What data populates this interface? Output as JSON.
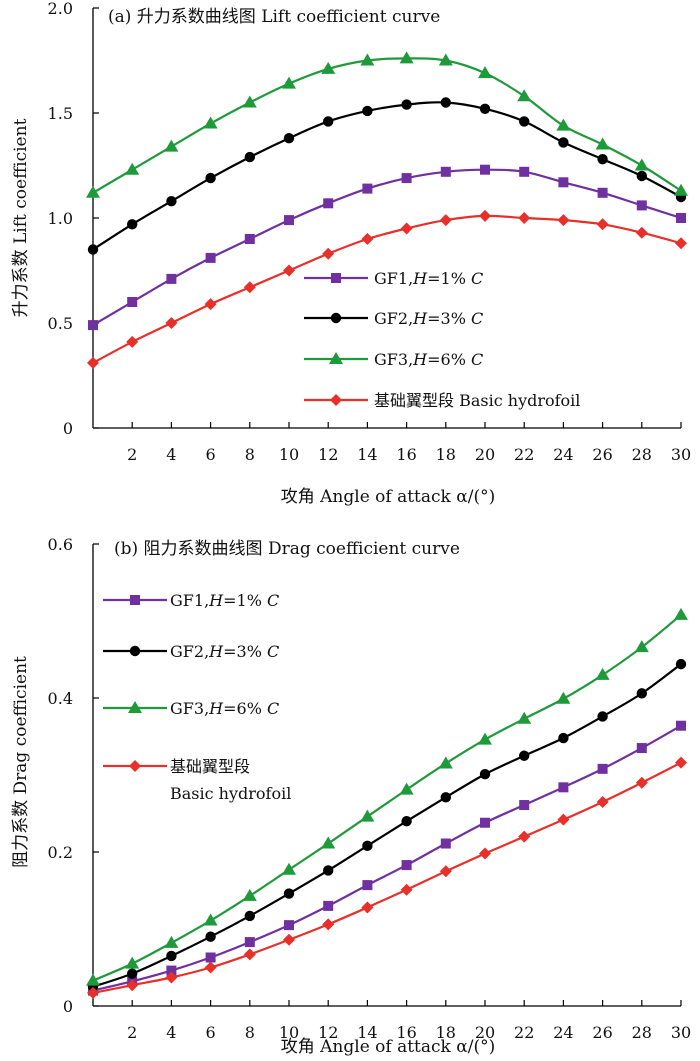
{
  "chart_data": [
    {
      "type": "line",
      "title": "(a) 升力系数曲线图 Lift coefficient curve",
      "xlabel": "攻角 Angle of attack α/(°)",
      "ylabel": "升力系数 Lift coefficient",
      "xlim": [
        0,
        30
      ],
      "ylim": [
        0,
        2.0
      ],
      "x_ticks": [
        "2",
        "4",
        "6",
        "8",
        "10",
        "12",
        "14",
        "16",
        "18",
        "20",
        "22",
        "24",
        "26",
        "28",
        "30"
      ],
      "y_ticks": [
        "0",
        "0.5",
        "1.0",
        "1.5",
        "2.0"
      ],
      "legend_position": "bottom-right",
      "legend_lines": [
        [
          "GF1,",
          "H",
          "=1% ",
          "C"
        ],
        [
          "GF2,",
          "H",
          "=3% ",
          "C"
        ],
        [
          "GF3,",
          "H",
          "=6% ",
          "C"
        ],
        [
          "基础翼型段 Basic hydrofoil"
        ]
      ],
      "x": [
        0,
        2,
        4,
        6,
        8,
        10,
        12,
        14,
        16,
        18,
        20,
        22,
        24,
        26,
        28,
        30
      ],
      "series": [
        {
          "name": "GF1,H=1% C",
          "color": "#7030a0",
          "marker": "square",
          "values": [
            0.49,
            0.6,
            0.71,
            0.81,
            0.9,
            0.99,
            1.07,
            1.14,
            1.19,
            1.22,
            1.23,
            1.22,
            1.17,
            1.12,
            1.06,
            1.0
          ]
        },
        {
          "name": "GF2,H=3% C",
          "color": "#000000",
          "marker": "circle",
          "values": [
            0.85,
            0.97,
            1.08,
            1.19,
            1.29,
            1.38,
            1.46,
            1.51,
            1.54,
            1.55,
            1.52,
            1.46,
            1.36,
            1.28,
            1.2,
            1.1
          ]
        },
        {
          "name": "GF3,H=6% C",
          "color": "#1f9a3a",
          "marker": "triangle",
          "values": [
            1.12,
            1.23,
            1.34,
            1.45,
            1.55,
            1.64,
            1.71,
            1.75,
            1.76,
            1.75,
            1.69,
            1.58,
            1.44,
            1.35,
            1.25,
            1.13
          ]
        },
        {
          "name": "基础翼型段 Basic hydrofoil",
          "color": "#e8302a",
          "marker": "diamond",
          "values": [
            0.31,
            0.41,
            0.5,
            0.59,
            0.67,
            0.75,
            0.83,
            0.9,
            0.95,
            0.99,
            1.01,
            1.0,
            0.99,
            0.97,
            0.93,
            0.88
          ]
        }
      ]
    },
    {
      "type": "line",
      "title": "(b) 阻力系数曲线图 Drag coefficient curve",
      "xlabel": "攻角 Angle of attack α/(°)",
      "ylabel": "阻力系数 Drag coefficient",
      "xlim": [
        0,
        30
      ],
      "ylim": [
        0,
        0.6
      ],
      "x_ticks": [
        "2",
        "4",
        "6",
        "8",
        "10",
        "12",
        "14",
        "16",
        "18",
        "20",
        "22",
        "24",
        "26",
        "28",
        "30"
      ],
      "y_ticks": [
        "0",
        "0.2",
        "0.4",
        "0.6"
      ],
      "legend_position": "top-left",
      "legend_lines": [
        [
          "GF1,",
          "H",
          "=1% ",
          "C"
        ],
        [
          "GF2,",
          "H",
          "=3% ",
          "C"
        ],
        [
          "GF3,",
          "H",
          "=6% ",
          "C"
        ],
        [
          "基础翼型段"
        ],
        [
          "Basic hydrofoil"
        ]
      ],
      "x": [
        0,
        2,
        4,
        6,
        8,
        10,
        12,
        14,
        16,
        18,
        20,
        22,
        24,
        26,
        28,
        30
      ],
      "series": [
        {
          "name": "GF1,H=1% C",
          "color": "#7030a0",
          "marker": "square",
          "values": [
            0.02,
            0.032,
            0.046,
            0.063,
            0.083,
            0.105,
            0.13,
            0.157,
            0.183,
            0.211,
            0.238,
            0.261,
            0.284,
            0.308,
            0.335,
            0.364
          ]
        },
        {
          "name": "GF2,H=3% C",
          "color": "#000000",
          "marker": "circle",
          "values": [
            0.025,
            0.042,
            0.065,
            0.09,
            0.117,
            0.146,
            0.176,
            0.208,
            0.24,
            0.271,
            0.301,
            0.325,
            0.348,
            0.376,
            0.406,
            0.444
          ]
        },
        {
          "name": "GF3,H=6% C",
          "color": "#1f9a3a",
          "marker": "triangle",
          "values": [
            0.033,
            0.055,
            0.082,
            0.111,
            0.143,
            0.177,
            0.211,
            0.246,
            0.281,
            0.315,
            0.346,
            0.373,
            0.399,
            0.43,
            0.466,
            0.508
          ]
        },
        {
          "name": "基础翼型段 Basic hydrofoil",
          "color": "#e8302a",
          "marker": "diamond",
          "values": [
            0.017,
            0.027,
            0.037,
            0.05,
            0.067,
            0.086,
            0.106,
            0.128,
            0.151,
            0.175,
            0.198,
            0.22,
            0.242,
            0.265,
            0.29,
            0.316
          ]
        }
      ]
    }
  ]
}
